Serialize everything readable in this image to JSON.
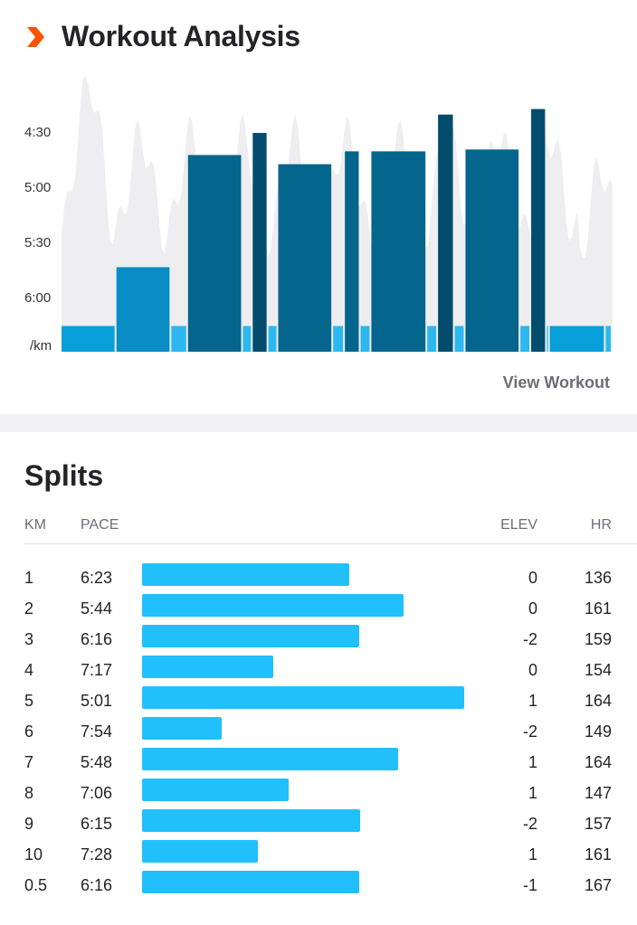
{
  "header": {
    "title": "Workout Analysis",
    "logo_icon": "chevron-right-icon",
    "logo_color": "#fc5200"
  },
  "chart": {
    "y_axis_labels": [
      "4:30",
      "5:00",
      "5:30",
      "6:00",
      "/km"
    ],
    "y_axis_seconds": [
      270,
      300,
      330,
      360
    ],
    "y_range_seconds": [
      240,
      390
    ],
    "segments": [
      {
        "duration": 56,
        "pace_s": 376,
        "kind": "rest"
      },
      {
        "duration": 56,
        "pace_s": 344,
        "kind": "easy"
      },
      {
        "duration": 17,
        "pace_s": 376,
        "kind": "recovery"
      },
      {
        "duration": 56,
        "pace_s": 283,
        "kind": "work"
      },
      {
        "duration": 10,
        "pace_s": 376,
        "kind": "recovery"
      },
      {
        "duration": 16,
        "pace_s": 271,
        "kind": "sprint"
      },
      {
        "duration": 10,
        "pace_s": 376,
        "kind": "recovery"
      },
      {
        "duration": 56,
        "pace_s": 288,
        "kind": "work"
      },
      {
        "duration": 12,
        "pace_s": 376,
        "kind": "recovery"
      },
      {
        "duration": 16,
        "pace_s": 281,
        "kind": "work"
      },
      {
        "duration": 11,
        "pace_s": 376,
        "kind": "recovery"
      },
      {
        "duration": 57,
        "pace_s": 281,
        "kind": "work"
      },
      {
        "duration": 11,
        "pace_s": 376,
        "kind": "recovery"
      },
      {
        "duration": 17,
        "pace_s": 261,
        "kind": "sprint"
      },
      {
        "duration": 11,
        "pace_s": 376,
        "kind": "recovery"
      },
      {
        "duration": 56,
        "pace_s": 280,
        "kind": "work"
      },
      {
        "duration": 11,
        "pace_s": 376,
        "kind": "recovery"
      },
      {
        "duration": 16,
        "pace_s": 258,
        "kind": "sprint"
      },
      {
        "duration": 3,
        "pace_s": 376,
        "kind": "recovery"
      },
      {
        "duration": 57,
        "pace_s": 376,
        "kind": "rest"
      },
      {
        "duration": 7,
        "pace_s": 376,
        "kind": "recovery"
      }
    ],
    "colors": {
      "rest": "#069fd9",
      "easy": "#0a8cc4",
      "recovery": "#2cb8ee",
      "work": "#04658d",
      "sprint": "#024c6d",
      "background": "#eeeef1"
    },
    "view_workout": "View Workout"
  },
  "splits": {
    "title": "Splits",
    "columns": {
      "km": "KM",
      "pace": "PACE",
      "elev": "ELEV",
      "hr": "HR"
    },
    "rows": [
      {
        "km": "1",
        "pace": "6:23",
        "elev": "0",
        "hr": "136"
      },
      {
        "km": "2",
        "pace": "5:44",
        "elev": "0",
        "hr": "161"
      },
      {
        "km": "3",
        "pace": "6:16",
        "elev": "-2",
        "hr": "159"
      },
      {
        "km": "4",
        "pace": "7:17",
        "elev": "0",
        "hr": "154"
      },
      {
        "km": "5",
        "pace": "5:01",
        "elev": "1",
        "hr": "164"
      },
      {
        "km": "6",
        "pace": "7:54",
        "elev": "-2",
        "hr": "149"
      },
      {
        "km": "7",
        "pace": "5:48",
        "elev": "1",
        "hr": "164"
      },
      {
        "km": "8",
        "pace": "7:06",
        "elev": "1",
        "hr": "147"
      },
      {
        "km": "9",
        "pace": "6:15",
        "elev": "-2",
        "hr": "157"
      },
      {
        "km": "10",
        "pace": "7:28",
        "elev": "1",
        "hr": "161"
      },
      {
        "km": "0.5",
        "pace": "6:16",
        "elev": "-1",
        "hr": "167"
      }
    ]
  }
}
